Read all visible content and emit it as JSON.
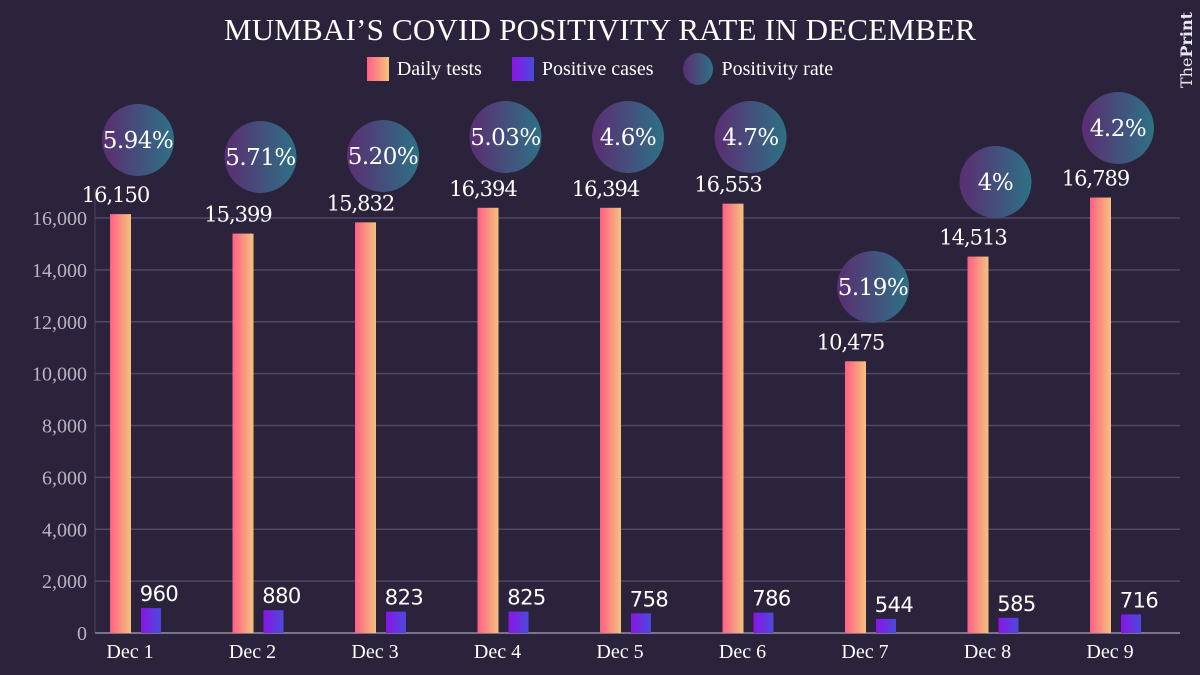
{
  "brand": {
    "prefix": "The",
    "name": "Print"
  },
  "chart_data": {
    "type": "bar",
    "title": "MUMBAI’S COVID POSITIVITY RATE IN DECEMBER",
    "xlabel": "",
    "ylabel": "",
    "ylim": [
      0,
      16000
    ],
    "yticks": [
      0,
      2000,
      4000,
      6000,
      8000,
      10000,
      12000,
      14000,
      16000
    ],
    "ytick_labels": [
      "0",
      "2,000",
      "4,000",
      "6,000",
      "8,000",
      "10,000",
      "12,000",
      "14,000",
      "16,000"
    ],
    "grid": true,
    "legend_position": "top-center",
    "categories": [
      "Dec 1",
      "Dec 2",
      "Dec 3",
      "Dec 4",
      "Dec 5",
      "Dec 6",
      "Dec 7",
      "Dec 8",
      "Dec 9"
    ],
    "series": [
      {
        "name": "Daily tests",
        "color_start": "#ff5f86",
        "color_end": "#f4c27d",
        "values": [
          16150,
          15399,
          15832,
          16394,
          16394,
          16553,
          10475,
          14513,
          16789
        ],
        "labels": [
          "16,150",
          "15,399",
          "15,832",
          "16,394",
          "16,394",
          "16,553",
          "10,475",
          "14,513",
          "16,789"
        ]
      },
      {
        "name": "Positive cases",
        "color_start": "#8b14e6",
        "color_end": "#4a4bdc",
        "values": [
          960,
          880,
          823,
          825,
          758,
          786,
          544,
          585,
          716
        ],
        "labels": [
          "960",
          "880",
          "823",
          "825",
          "758",
          "786",
          "544",
          "585",
          "716"
        ]
      },
      {
        "name": "Positivity rate",
        "color_start": "#5b2d72",
        "color_end": "#2d7185",
        "values": [
          5.94,
          5.71,
          5.2,
          5.03,
          4.6,
          4.7,
          5.19,
          4,
          4.2
        ],
        "labels": [
          "5.94%",
          "5.71%",
          "5.20%",
          "5.03%",
          "4.6%",
          "4.7%",
          "5.19%",
          "4%",
          "4.2%"
        ]
      }
    ]
  }
}
